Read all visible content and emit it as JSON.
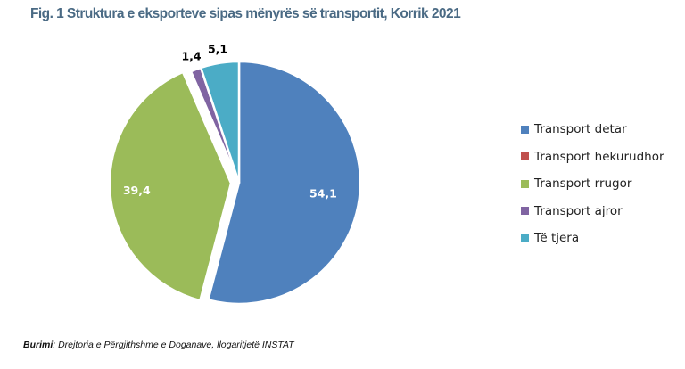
{
  "figure": {
    "title": "Fig. 1 Struktura e eksporteve sipas mënyrës së transportit, Korrik 2021",
    "source_label": "Burimi",
    "source_text": ": Drejtoria e Përgjithshme e Doganave, llogaritjetë INSTAT"
  },
  "chart_data": {
    "type": "pie",
    "title": "Fig. 1 Struktura e eksporteve sipas mënyrës së transportit, Korrik 2021",
    "legend_position": "right",
    "slices": [
      {
        "label": "Transport detar",
        "value": 54.1,
        "display": "54,1",
        "color": "#4f81bd"
      },
      {
        "label": "Transport hekurudhor",
        "value": 0,
        "display": "",
        "color": "#c0504d"
      },
      {
        "label": "Transport rrugor",
        "value": 39.4,
        "display": "39,4",
        "color": "#9bbb59"
      },
      {
        "label": "Transport ajror",
        "value": 1.4,
        "display": "1,4",
        "color": "#8064a2"
      },
      {
        "label": "Të tjera",
        "value": 5.1,
        "display": "5,1",
        "color": "#4bacc6"
      }
    ]
  }
}
